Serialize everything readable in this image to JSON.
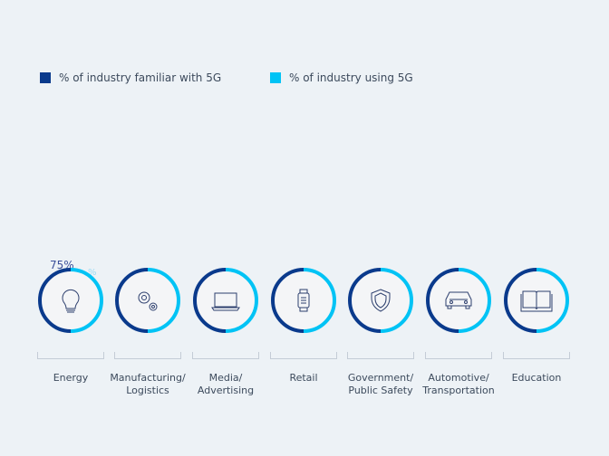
{
  "colors": {
    "familiar": "#0a3a8c",
    "using": "#00c3f5",
    "ring_bg": "#f4f5f7",
    "icon": "#2d3f6e"
  },
  "chart_data": {
    "type": "donut-row",
    "legend": [
      {
        "label": "% of industry familiar with 5G",
        "color": "#0a3a8c"
      },
      {
        "label": "% of industry using 5G",
        "color": "#00c3f5"
      }
    ],
    "legend_position": "top-left",
    "categories": [
      {
        "name": "Energy",
        "line1": "Energy",
        "line2": "",
        "icon": "lightbulb-icon"
      },
      {
        "name": "Manufacturing/ Logistics",
        "line1": "Manufacturing/",
        "line2": "Logistics",
        "icon": "gears-icon"
      },
      {
        "name": "Media/ Advertising",
        "line1": "Media/",
        "line2": "Advertising",
        "icon": "laptop-icon"
      },
      {
        "name": "Retail",
        "line1": "Retail",
        "line2": "",
        "icon": "smartwatch-icon"
      },
      {
        "name": "Government/ Public Safety",
        "line1": "Government/",
        "line2": "Public Safety",
        "icon": "shield-icon"
      },
      {
        "name": "Automotive/ Transportation",
        "line1": "Automotive/",
        "line2": "Transportation",
        "icon": "car-icon"
      },
      {
        "name": "Education",
        "line1": "Education",
        "line2": "",
        "icon": "book-icon"
      }
    ],
    "annotations": {
      "energy_familiar": "75%",
      "energy_using": "%"
    }
  }
}
